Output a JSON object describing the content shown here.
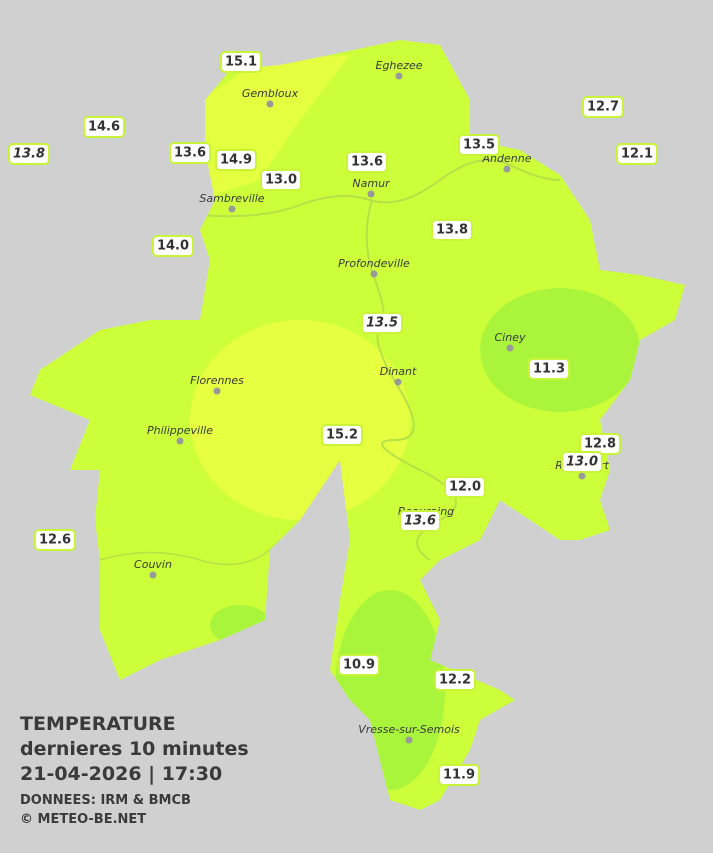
{
  "map": {
    "cities": [
      "Eghezee",
      "Gembloux",
      "Andenne",
      "Namur",
      "Sambreville",
      "Profondeville",
      "Ciney",
      "Dinant",
      "Florennes",
      "Philippeville",
      "Rochefort",
      "Beauraing",
      "Couvin",
      "Vresse-sur-Semois"
    ],
    "stations": [
      "15.1",
      "14.6",
      "13.8",
      "13.6",
      "14.9",
      "13.0",
      "13.6",
      "13.5",
      "12.7",
      "12.1",
      "13.8",
      "14.0",
      "13.5",
      "11.3",
      "15.2",
      "12.8",
      "13.0",
      "12.0",
      "13.6",
      "12.6",
      "10.9",
      "12.2",
      "11.9"
    ]
  },
  "caption": {
    "title": "TEMPERATURE",
    "subtitle": "dernieres 10 minutes",
    "datetime": "21-04-2026  |  17:30",
    "source": "DONNEES: IRM & BMCB",
    "copyright": "© METEO-BE.NET"
  }
}
